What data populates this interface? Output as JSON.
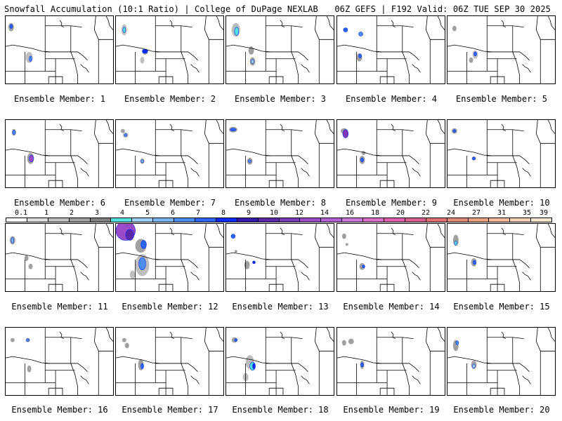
{
  "title_left": "Snowfall Accumulation (10:1 Ratio) | College of DuPage NEXLAB",
  "title_right": "06Z GEFS | F192 Valid: 06Z TUE SEP 30 2025",
  "member_label": "Ensemble Member:",
  "members": [
    "1",
    "2",
    "3",
    "4",
    "5",
    "6",
    "7",
    "8",
    "9",
    "10",
    "11",
    "12",
    "13",
    "14",
    "15",
    "16",
    "17",
    "18",
    "19",
    "20"
  ],
  "scale_ticks": [
    "0.1",
    "1",
    "2",
    "3",
    "4",
    "5",
    "6",
    "7",
    "8",
    "9",
    "10",
    "12",
    "14",
    "16",
    "18",
    "20",
    "22",
    "24",
    "27",
    "31",
    "35",
    "39"
  ],
  "scale_colors": [
    "#ffffff",
    "#dcdcdc",
    "#bebebe",
    "#a0a0a0",
    "#808080",
    "#50e0e0",
    "#9ad0f5",
    "#7ab4f0",
    "#4c8ef0",
    "#2a66f0",
    "#0a2cf5",
    "#3818a8",
    "#5a28a8",
    "#7c3ab8",
    "#9a4cc8",
    "#b060d0",
    "#c878d8",
    "#d870c8",
    "#e060b0",
    "#d86090",
    "#e07070",
    "#e08a78",
    "#e8a080",
    "#f0b898",
    "#f4d0b0",
    "#f8e4c8"
  ]
}
